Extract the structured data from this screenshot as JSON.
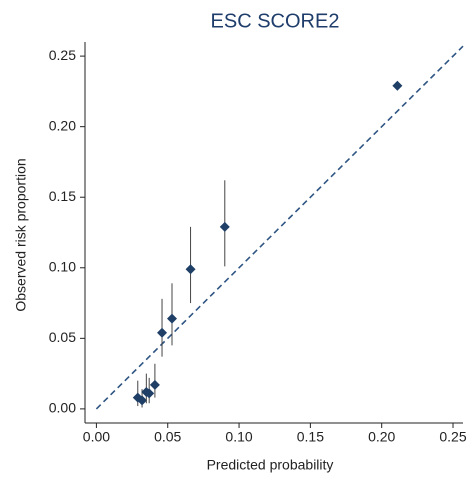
{
  "chart_data": {
    "type": "scatter",
    "title": "ESC SCORE2",
    "x_label": "Predicted probability",
    "y_label": "Observed risk proportion",
    "color": "#1f3f66",
    "x": [
      0.029,
      0.032,
      0.035,
      0.037,
      0.041,
      0.046,
      0.053,
      0.066,
      0.09,
      0.211
    ],
    "values": [
      0.008,
      0.006,
      0.012,
      0.011,
      0.017,
      0.054,
      0.064,
      0.099,
      0.129,
      0.229
    ],
    "lower": [
      0.002,
      0.001,
      0.004,
      0.004,
      0.008,
      0.037,
      0.045,
      0.075,
      0.101,
      0.227
    ],
    "upper": [
      0.02,
      0.014,
      0.025,
      0.022,
      0.032,
      0.078,
      0.089,
      0.129,
      0.162,
      0.231
    ],
    "xlim": [
      -0.008,
      0.257
    ],
    "ylim": [
      -0.01,
      0.26
    ],
    "xticks": [
      {
        "value": 0,
        "label": "0.00"
      },
      {
        "value": 0.05,
        "label": "0.05"
      },
      {
        "value": 0.1,
        "label": "0.10"
      },
      {
        "value": 0.15,
        "label": "0.15"
      },
      {
        "value": 0.2,
        "label": "0.20"
      },
      {
        "value": 0.25,
        "label": "0.25"
      }
    ],
    "yticks": [
      {
        "value": 0,
        "label": "0.00"
      },
      {
        "value": 0.05,
        "label": "0.05"
      },
      {
        "value": 0.1,
        "label": "0.10"
      },
      {
        "value": 0.15,
        "label": "0.15"
      },
      {
        "value": 0.2,
        "label": "0.20"
      },
      {
        "value": 0.25,
        "label": "0.25"
      }
    ]
  }
}
